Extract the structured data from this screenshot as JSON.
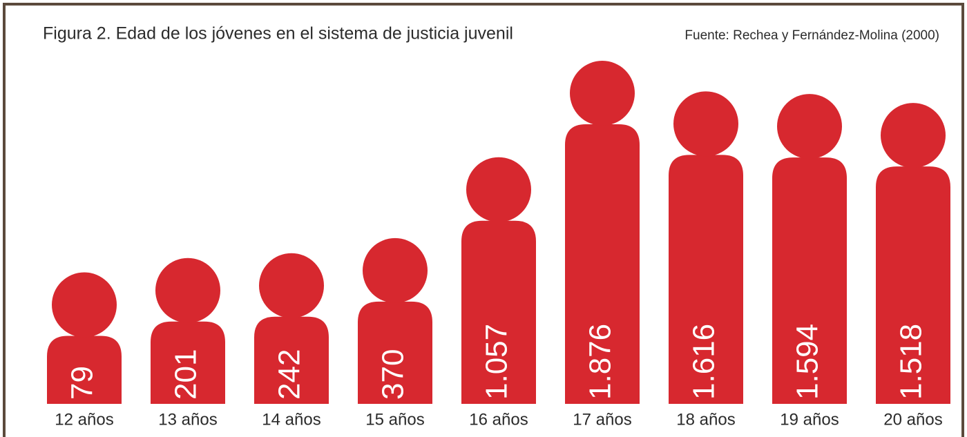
{
  "chart_data": {
    "type": "pictogram-bar",
    "title": "Figura 2. Edad de los jóvenes en el sistema de justicia juvenil",
    "source": "Fuente: Rechea y Fernández-Molina (2000)",
    "categories": [
      "12 años",
      "13 años",
      "14 años",
      "15 años",
      "16 años",
      "17 años",
      "18 años",
      "19 años",
      "20 años"
    ],
    "values": [
      79,
      201,
      242,
      370,
      1057,
      1876,
      1616,
      1594,
      1518
    ],
    "value_labels": [
      "79",
      "201",
      "242",
      "370",
      "1.057",
      "1.876",
      "1.616",
      "1.594",
      "1.518"
    ],
    "color": "#d7282f"
  }
}
